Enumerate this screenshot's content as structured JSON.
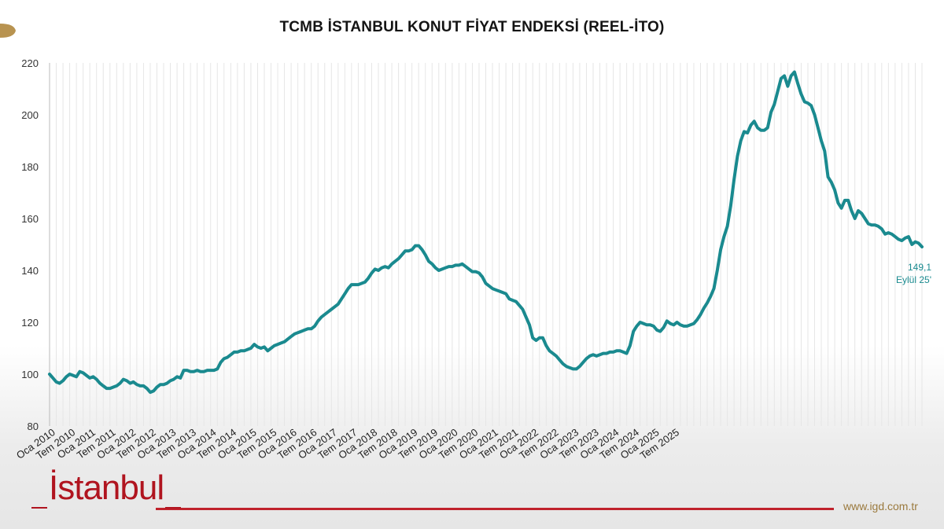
{
  "title": "TCMB İSTANBUL KONUT FİYAT ENDEKSİ (REEL-İTO)",
  "brand": {
    "logo_text": "İstanbul",
    "website": "www.igd.com.tr",
    "accent_color": "#c0222c",
    "gold_color": "#9b7a3e"
  },
  "chart_data": {
    "type": "line",
    "title": "TCMB İSTANBUL KONUT FİYAT ENDEKSİ (REEL-İTO)",
    "xlabel": "",
    "ylabel": "",
    "ylim": [
      80,
      220
    ],
    "yticks": [
      80,
      100,
      120,
      140,
      160,
      180,
      200,
      220
    ],
    "grid": "vertical",
    "line_color": "#1a8a8f",
    "x_tick_labels": [
      "Oca 2010",
      "Tem 2010",
      "Oca 2011",
      "Tem 2011",
      "Oca 2012",
      "Tem 2012",
      "Oca 2013",
      "Tem 2013",
      "Oca 2014",
      "Tem 2014",
      "Oca 2015",
      "Tem 2015",
      "Oca 2016",
      "Tem 2016",
      "Oca 2017",
      "Tem 2017",
      "Oca 2018",
      "Tem 2018",
      "Oca 2019",
      "Tem 2019",
      "Oca 2020",
      "Tem 2020",
      "Oca 2021",
      "Tem 2021",
      "Oca 2022",
      "Tem 2022",
      "Oca 2023",
      "Tem 2023",
      "Oca 2024",
      "Tem 2024",
      "Oca 2025",
      "Tem 2025"
    ],
    "series": [
      {
        "values": [
          100,
          98.5,
          97,
          96.5,
          97.5,
          99,
          100,
          99.5,
          99,
          101,
          100.5,
          99.5,
          98.5,
          99,
          98,
          96.5,
          95.5,
          94.5,
          94.5,
          95,
          95.5,
          96.5,
          98,
          97.5,
          96.5,
          97,
          96,
          95.5,
          95.5,
          94.5,
          93,
          93.5,
          95,
          96,
          96,
          96.5,
          97.5,
          98,
          99,
          98.5,
          101.5,
          101.5,
          101,
          101,
          101.5,
          101,
          101,
          101.5,
          101.5,
          101.5,
          102,
          104.5,
          106,
          106.5,
          107.5,
          108.5,
          108.5,
          109,
          109,
          109.5,
          110,
          111.5,
          110.5,
          110,
          110.5,
          109,
          110,
          111,
          111.5,
          112,
          112.5,
          113.5,
          114.5,
          115.5,
          116,
          116.5,
          117,
          117.5,
          117.5,
          118.5,
          120.5,
          122,
          123,
          124,
          125,
          126,
          127,
          129,
          131,
          133,
          134.5,
          134.5,
          134.5,
          135,
          135.5,
          137,
          139,
          140.5,
          140,
          141,
          141.5,
          141,
          142.5,
          143.5,
          144.5,
          146,
          147.5,
          147.5,
          148,
          149.5,
          149.5,
          148,
          146,
          143.5,
          142.5,
          141,
          140,
          140.5,
          141,
          141.5,
          141.5,
          142,
          142,
          142.5,
          141.5,
          140.5,
          139.5,
          139.5,
          139,
          137.5,
          135,
          134,
          133,
          132.5,
          132,
          131.5,
          131,
          129,
          128.5,
          128,
          126.5,
          125,
          122,
          119,
          114,
          113,
          114,
          114,
          111,
          109,
          108,
          107,
          105.5,
          104,
          103,
          102.5,
          102,
          102,
          103,
          104.5,
          106,
          107,
          107.5,
          107,
          107.5,
          108,
          108,
          108.5,
          108.5,
          109,
          109,
          108.5,
          108,
          111,
          116.5,
          118.5,
          120,
          119.5,
          119,
          119,
          118.5,
          117,
          116.5,
          118,
          120.5,
          119.5,
          119,
          120,
          119,
          118.5,
          118.5,
          119,
          119.5,
          121,
          123,
          125.5,
          127.5,
          130,
          133,
          140,
          148,
          153,
          157,
          165,
          175,
          184,
          190,
          193.5,
          193,
          196,
          197.5,
          195,
          194,
          194,
          195,
          201,
          204,
          209,
          214,
          215,
          211,
          215,
          216.5,
          212,
          208,
          205,
          204.5,
          203.5,
          200,
          195,
          190,
          186,
          176,
          174,
          171,
          166,
          164,
          167,
          167,
          163,
          160,
          163,
          162,
          160,
          158,
          157.5,
          157.5,
          157,
          156,
          154,
          154.5,
          154,
          153,
          152,
          151.5,
          152.5,
          153,
          150,
          151,
          150.5,
          149.1
        ]
      }
    ],
    "annotations": [
      {
        "value": "149,1",
        "label": "Eylül 25'"
      }
    ]
  }
}
